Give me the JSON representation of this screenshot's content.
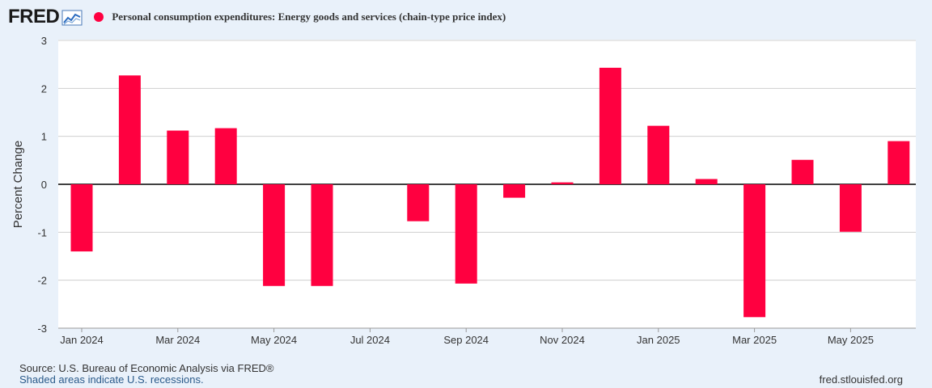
{
  "header": {
    "logo_text": "FRED",
    "logo_icon": "chart-line-icon"
  },
  "legend": {
    "label": "Personal consumption expenditures: Energy goods and services (chain-type price index)",
    "color": "#ff0040"
  },
  "footer": {
    "source": "U.S. Bureau of Economic Analysis via FRED®",
    "source_prefix": "Source: ",
    "recessions": "Shaded areas indicate U.S. recessions.",
    "site": "fred.stlouisfed.org"
  },
  "chart_data": {
    "type": "bar",
    "title": "Personal consumption expenditures: Energy goods and services (chain-type price index)",
    "xlabel": "",
    "ylabel": "Percent Change",
    "ylim": [
      -3,
      3
    ],
    "yticks": [
      3,
      2,
      1,
      0,
      -1,
      -2,
      -3
    ],
    "categories": [
      "Jan 2024",
      "Feb 2024",
      "Mar 2024",
      "Apr 2024",
      "May 2024",
      "Jun 2024",
      "Jul 2024",
      "Aug 2024",
      "Sep 2024",
      "Oct 2024",
      "Nov 2024",
      "Dec 2024",
      "Jan 2025",
      "Feb 2025",
      "Mar 2025",
      "Apr 2025",
      "May 2025",
      "Jun 2025"
    ],
    "xtick_labels": [
      "Jan 2024",
      "Mar 2024",
      "May 2024",
      "Jul 2024",
      "Sep 2024",
      "Nov 2024",
      "Jan 2025",
      "Mar 2025",
      "May 2025"
    ],
    "xtick_indices": [
      0,
      2,
      4,
      6,
      8,
      10,
      12,
      14,
      16
    ],
    "values": [
      -1.4,
      2.27,
      1.12,
      1.17,
      -2.12,
      -2.12,
      0.0,
      -0.77,
      -2.07,
      -0.28,
      0.04,
      2.43,
      1.22,
      0.11,
      -2.77,
      0.51,
      -0.99,
      0.9
    ],
    "series_color": "#ff0040",
    "grid": true
  }
}
